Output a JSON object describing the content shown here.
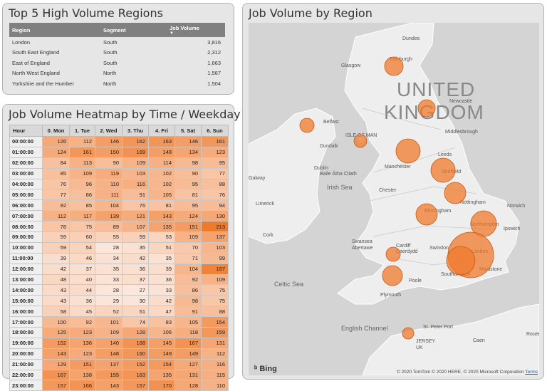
{
  "top_regions": {
    "title": "Top 5 High Volume Regions",
    "headers": [
      "Region",
      "Segment",
      "Job Volume"
    ],
    "rows": [
      [
        "London",
        "South",
        "3,816"
      ],
      [
        "South East England",
        "South",
        "2,312"
      ],
      [
        "East of England",
        "South",
        "1,663"
      ],
      [
        "North West England",
        "North",
        "1,567"
      ],
      [
        "Yorkshire and the Humber",
        "North",
        "1,504"
      ]
    ]
  },
  "heatmap": {
    "title": "Job Volume Heatmap by Time / Weekday",
    "headers": [
      "Hour",
      "0. Mon",
      "1. Tue",
      "2. Wed",
      "3. Thu",
      "4. Fri",
      "5. Sat",
      "6. Sun"
    ],
    "hours": [
      "00:00:00",
      "01:00:00",
      "02:00:00",
      "03:00:00",
      "04:00:00",
      "05:00:00",
      "06:00:00",
      "07:00:00",
      "08:00:00",
      "09:00:00",
      "10:00:00",
      "11:00:00",
      "12:00:00",
      "13:00:00",
      "14:00:00",
      "15:00:00",
      "16:00:00",
      "17:00:00",
      "18:00:00",
      "19:00:00",
      "20:00:00",
      "21:00:00",
      "22:00:00",
      "23:00:00"
    ],
    "values": [
      [
        126,
        112,
        146,
        162,
        163,
        146,
        161
      ],
      [
        124,
        161,
        150,
        169,
        148,
        134,
        123
      ],
      [
        84,
        113,
        90,
        109,
        114,
        98,
        95
      ],
      [
        85,
        109,
        119,
        103,
        102,
        90,
        77
      ],
      [
        76,
        96,
        110,
        116,
        102,
        95,
        88
      ],
      [
        77,
        86,
        111,
        91,
        105,
        81,
        76
      ],
      [
        92,
        85,
        104,
        76,
        81,
        95,
        94
      ],
      [
        112,
        117,
        139,
        121,
        143,
        124,
        130
      ],
      [
        78,
        75,
        89,
        107,
        135,
        151,
        213
      ],
      [
        59,
        60,
        55,
        59,
        53,
        109,
        137
      ],
      [
        59,
        54,
        28,
        35,
        51,
        70,
        103
      ],
      [
        39,
        46,
        34,
        42,
        35,
        71,
        99
      ],
      [
        42,
        37,
        35,
        36,
        39,
        104,
        197
      ],
      [
        48,
        40,
        33,
        37,
        36,
        92,
        109
      ],
      [
        43,
        44,
        28,
        27,
        33,
        86,
        75
      ],
      [
        43,
        36,
        29,
        30,
        42,
        98,
        75
      ],
      [
        58,
        45,
        52,
        51,
        47,
        91,
        88
      ],
      [
        100,
        92,
        101,
        74,
        83,
        105,
        154
      ],
      [
        125,
        123,
        109,
        128,
        106,
        118,
        159
      ],
      [
        152,
        136,
        140,
        168,
        145,
        167,
        131
      ],
      [
        143,
        123,
        148,
        160,
        149,
        149,
        112
      ],
      [
        129,
        151,
        137,
        152,
        154,
        127,
        116
      ],
      [
        167,
        138,
        155,
        163,
        135,
        131,
        115
      ],
      [
        157,
        166,
        143,
        157,
        170,
        128,
        110
      ]
    ],
    "color_low": "#fbe7dc",
    "color_high": "#f07a2c"
  },
  "map": {
    "title": "Job Volume by Region",
    "country_label_line1": "UNITED",
    "country_label_line2": "KINGDOM",
    "sea_labels": [
      "Irish Sea",
      "Celtic Sea",
      "English Channel"
    ],
    "place_labels": [
      "Dundee",
      "Edinburgh",
      "Glasgow",
      "Belfast",
      "Newcastle",
      "Middlesbrough",
      "Dundalk",
      "ISLE OF MAN",
      "Leeds",
      "Manchester",
      "Sheffield",
      "Galway",
      "Dublin",
      "Baile Átha Cliath",
      "Chester",
      "Limerick",
      "Nottingham",
      "Norwich",
      "Birmingham",
      "Northampton",
      "Ipswich",
      "Cork",
      "Swansea",
      "Abertawe",
      "Cardiff",
      "Caerdydd",
      "Swindon",
      "London",
      "Maidstone",
      "Southampton",
      "Poole",
      "Plymouth",
      "Rouen",
      "Caen",
      "St. Peter Port",
      "JERSEY",
      "UK"
    ],
    "bubble_color": "#f07a2c",
    "copyright": "© 2020 TomTom © 2020 HERE, © 2020 Microsoft Corporation",
    "terms": "Terms",
    "bing": "Bing"
  }
}
